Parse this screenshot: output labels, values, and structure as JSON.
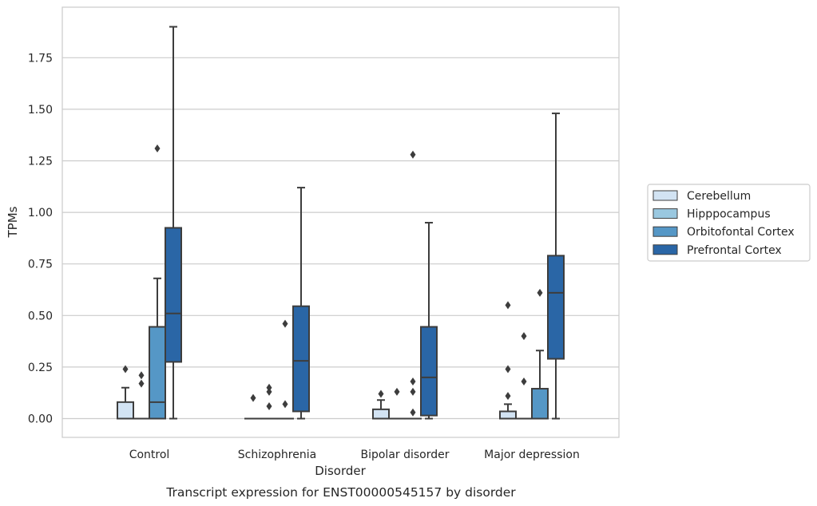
{
  "chart_data": {
    "type": "box",
    "title": "",
    "caption": "Transcript expression for ENST00000545157 by disorder",
    "xlabel": "Disorder",
    "ylabel": "TPMs",
    "ylim": [
      -0.09,
      1.99
    ],
    "yticks": [
      "0.00",
      "0.25",
      "0.50",
      "0.75",
      "1.00",
      "1.25",
      "1.50",
      "1.75"
    ],
    "categories": [
      "Control",
      "Schizophrenia",
      "Bipolar disorder",
      "Major depression"
    ],
    "grid": "horizontal",
    "legend_position": "right",
    "series": [
      {
        "name": "Cerebellum",
        "color": "#d2e3f3",
        "boxes": [
          {
            "whislo": 0.0,
            "q1": 0.0,
            "med": 0.0,
            "q3": 0.08,
            "whishi": 0.15,
            "fliers": [
              0.24
            ]
          },
          {
            "whislo": 0.0,
            "q1": 0.0,
            "med": 0.0,
            "q3": 0.0,
            "whishi": 0.0,
            "fliers": [
              0.1
            ]
          },
          {
            "whislo": 0.0,
            "q1": 0.0,
            "med": 0.0,
            "q3": 0.045,
            "whishi": 0.09,
            "fliers": [
              0.12
            ]
          },
          {
            "whislo": 0.0,
            "q1": 0.0,
            "med": 0.0,
            "q3": 0.035,
            "whishi": 0.07,
            "fliers": [
              0.11,
              0.24,
              0.55
            ]
          }
        ]
      },
      {
        "name": "Hipppocampus",
        "color": "#9ac8e0",
        "boxes": [
          {
            "whislo": 0.0,
            "q1": 0.0,
            "med": 0.0,
            "q3": 0.0,
            "whishi": 0.0,
            "fliers": [
              0.17,
              0.21
            ]
          },
          {
            "whislo": 0.0,
            "q1": 0.0,
            "med": 0.0,
            "q3": 0.0,
            "whishi": 0.0,
            "fliers": [
              0.06,
              0.13,
              0.15
            ]
          },
          {
            "whislo": 0.0,
            "q1": 0.0,
            "med": 0.0,
            "q3": 0.0,
            "whishi": 0.0,
            "fliers": [
              0.13
            ]
          },
          {
            "whislo": 0.0,
            "q1": 0.0,
            "med": 0.0,
            "q3": 0.0,
            "whishi": 0.0,
            "fliers": [
              0.18,
              0.4
            ]
          }
        ]
      },
      {
        "name": "Orbitofontal Cortex",
        "color": "#5597c6",
        "boxes": [
          {
            "whislo": 0.0,
            "q1": 0.0,
            "med": 0.08,
            "q3": 0.445,
            "whishi": 0.68,
            "fliers": [
              1.31
            ]
          },
          {
            "whislo": 0.0,
            "q1": 0.0,
            "med": 0.0,
            "q3": 0.0,
            "whishi": 0.0,
            "fliers": [
              0.07,
              0.46
            ]
          },
          {
            "whislo": 0.0,
            "q1": 0.0,
            "med": 0.0,
            "q3": 0.0,
            "whishi": 0.0,
            "fliers": [
              0.03,
              0.13,
              0.18,
              1.28
            ]
          },
          {
            "whislo": 0.0,
            "q1": 0.0,
            "med": 0.0,
            "q3": 0.145,
            "whishi": 0.33,
            "fliers": [
              0.61
            ]
          }
        ]
      },
      {
        "name": "Prefrontal Cortex",
        "color": "#2a66a6",
        "boxes": [
          {
            "whislo": 0.0,
            "q1": 0.275,
            "med": 0.51,
            "q3": 0.925,
            "whishi": 1.9,
            "fliers": []
          },
          {
            "whislo": 0.0,
            "q1": 0.035,
            "med": 0.28,
            "q3": 0.545,
            "whishi": 1.12,
            "fliers": []
          },
          {
            "whislo": 0.0,
            "q1": 0.015,
            "med": 0.2,
            "q3": 0.445,
            "whishi": 0.95,
            "fliers": []
          },
          {
            "whislo": 0.0,
            "q1": 0.29,
            "med": 0.61,
            "q3": 0.79,
            "whishi": 1.48,
            "fliers": []
          }
        ]
      }
    ]
  }
}
